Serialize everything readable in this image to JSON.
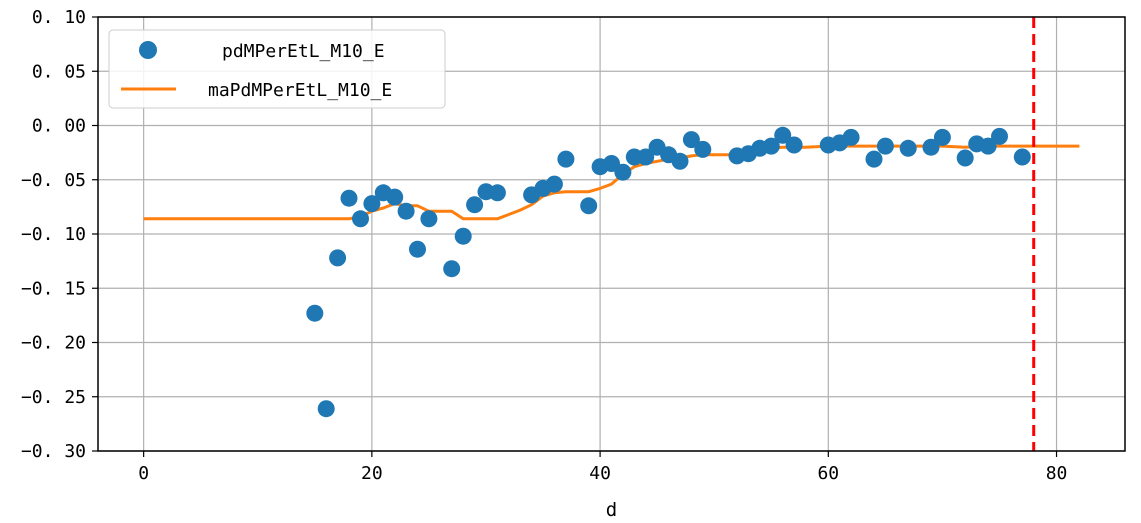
{
  "chart_data": {
    "type": "scatter",
    "title": "",
    "xlabel": "d",
    "ylabel": "",
    "xlim": [
      -4,
      86
    ],
    "ylim": [
      -0.3,
      0.1
    ],
    "xticks": [
      0,
      20,
      40,
      60,
      80
    ],
    "xtick_labels": [
      "0",
      "20",
      "40",
      "60",
      "80"
    ],
    "yticks": [
      0.1,
      0.05,
      0.0,
      -0.05,
      -0.1,
      -0.15,
      -0.2,
      -0.25,
      -0.3
    ],
    "ytick_labels": [
      "0. 10",
      "0. 05",
      "0. 00",
      "−0. 05",
      "−0. 10",
      "−0. 15",
      "−0. 20",
      "−0. 25",
      "−0. 30"
    ],
    "grid": true,
    "legend_position": "upper-left",
    "series": [
      {
        "name": "pdMPerEtL_M10_E",
        "kind": "scatter",
        "color": "#1f77b4",
        "x": [
          15,
          16,
          17,
          18,
          19,
          20,
          21,
          22,
          23,
          24,
          25,
          27,
          28,
          29,
          30,
          31,
          34,
          35,
          36,
          37,
          39,
          40,
          41,
          42,
          43,
          44,
          45,
          46,
          47,
          48,
          49,
          52,
          53,
          54,
          55,
          56,
          57,
          60,
          61,
          62,
          64,
          65,
          67,
          69,
          70,
          72,
          73,
          74,
          75,
          77
        ],
        "y": [
          -0.173,
          -0.261,
          -0.122,
          -0.067,
          -0.086,
          -0.072,
          -0.062,
          -0.066,
          -0.079,
          -0.114,
          -0.086,
          -0.132,
          -0.102,
          -0.073,
          -0.061,
          -0.062,
          -0.064,
          -0.058,
          -0.054,
          -0.031,
          -0.074,
          -0.038,
          -0.035,
          -0.043,
          -0.029,
          -0.029,
          -0.02,
          -0.027,
          -0.033,
          -0.013,
          -0.022,
          -0.028,
          -0.026,
          -0.021,
          -0.019,
          -0.009,
          -0.018,
          -0.018,
          -0.016,
          -0.011,
          -0.031,
          -0.019,
          -0.021,
          -0.02,
          -0.011,
          -0.03,
          -0.017,
          -0.019,
          -0.01,
          -0.029
        ]
      },
      {
        "name": "maPdMPerEtL_M10_E",
        "kind": "line",
        "color": "#ff7f0e",
        "x": [
          0,
          18,
          19,
          20,
          21,
          22,
          23,
          24,
          25,
          26,
          27,
          28,
          29,
          30,
          31,
          32,
          33,
          34,
          35,
          36,
          37,
          38,
          39,
          40,
          41,
          42,
          43,
          44,
          45,
          46,
          47,
          48,
          49,
          50,
          51,
          52,
          53,
          54,
          55,
          56,
          57,
          58,
          60,
          62,
          64,
          66,
          68,
          70,
          72,
          74,
          76,
          78,
          80,
          82
        ],
        "y": [
          -0.086,
          -0.086,
          -0.084,
          -0.079,
          -0.076,
          -0.072,
          -0.074,
          -0.074,
          -0.079,
          -0.079,
          -0.079,
          -0.086,
          -0.086,
          -0.086,
          -0.086,
          -0.082,
          -0.078,
          -0.073,
          -0.065,
          -0.062,
          -0.061,
          -0.061,
          -0.061,
          -0.058,
          -0.054,
          -0.045,
          -0.038,
          -0.035,
          -0.033,
          -0.031,
          -0.03,
          -0.028,
          -0.027,
          -0.027,
          -0.027,
          -0.027,
          -0.027,
          -0.025,
          -0.021,
          -0.02,
          -0.02,
          -0.02,
          -0.019,
          -0.019,
          -0.019,
          -0.019,
          -0.019,
          -0.019,
          -0.02,
          -0.019,
          -0.019,
          -0.019,
          -0.019,
          -0.019
        ]
      }
    ],
    "vertical_line": {
      "x": 78,
      "color": "#ff0000",
      "style": "dashed"
    }
  }
}
